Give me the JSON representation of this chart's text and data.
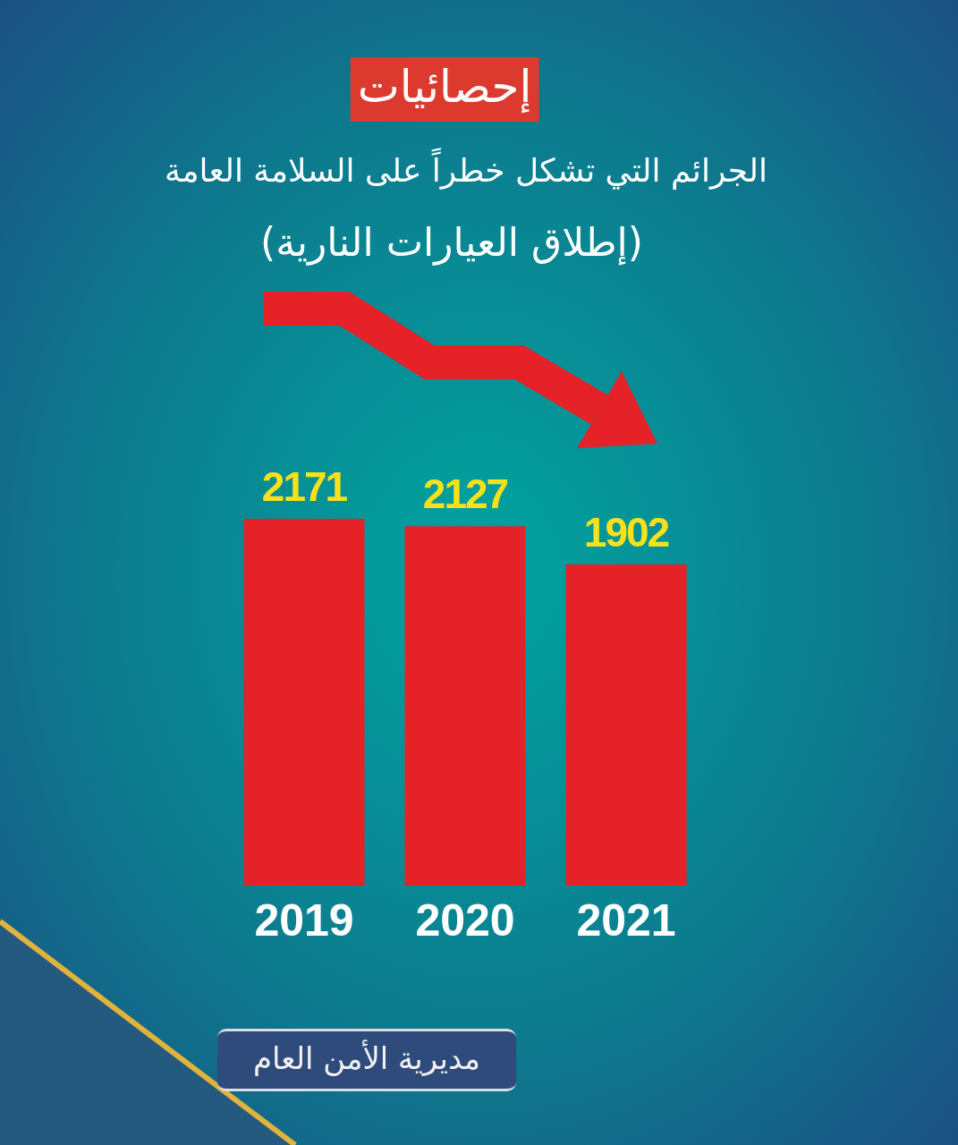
{
  "chart_data": {
    "type": "bar",
    "title": "إحصائيات",
    "subtitle": "الجرائم التي تشكل خطراً على السلامة العامة",
    "annotations": [
      "(إطلاق العيارات النارية)",
      "مديرية الأمن العام"
    ],
    "categories": [
      "2019",
      "2020",
      "2021"
    ],
    "values": [
      2171,
      2127,
      1902
    ],
    "color": "#e52228",
    "data_labels": true
  }
}
